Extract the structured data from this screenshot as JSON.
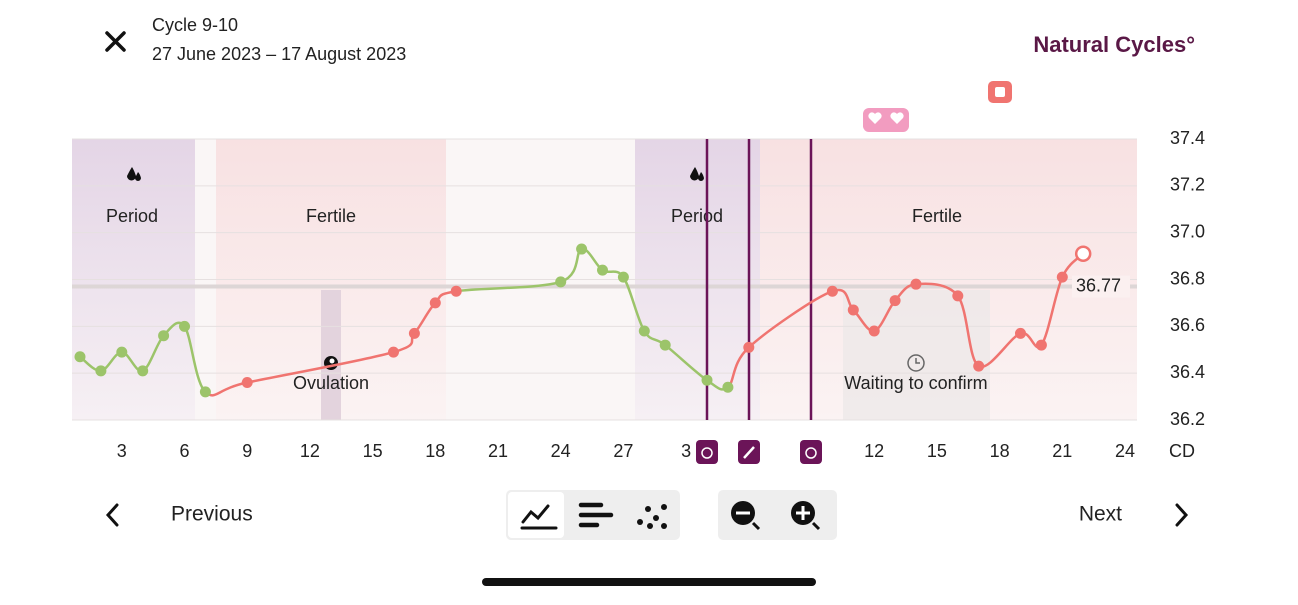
{
  "header": {
    "title": "Cycle 9-10",
    "subtitle": "27 June 2023 – 17 August 2023",
    "brand": "Natural Cycles°"
  },
  "chart_data": {
    "type": "line",
    "categories": [
      null,
      null,
      "3",
      null,
      null,
      "6",
      null,
      null,
      "9",
      null,
      null,
      "12",
      null,
      null,
      "15",
      null,
      null,
      "18",
      null,
      null,
      "21",
      null,
      null,
      "24",
      null,
      null,
      "27",
      null,
      null,
      "3",
      null,
      null,
      null,
      null,
      null,
      null,
      null,
      null,
      "12",
      null,
      null,
      "15",
      null,
      null,
      "18",
      null,
      null,
      "21",
      null,
      null,
      "24"
    ],
    "series": [
      {
        "color": "#9cc46a",
        "values": [
          36.47,
          36.41,
          36.49,
          36.41,
          36.56,
          36.6,
          36.32,
          null,
          null,
          null,
          null,
          null,
          null,
          null,
          null,
          null,
          null,
          null,
          null,
          null,
          null,
          null,
          null,
          36.79,
          36.93,
          36.84,
          36.81,
          36.58,
          36.52,
          null,
          36.37,
          36.34,
          null,
          null,
          null,
          null,
          null,
          null,
          null,
          null,
          null,
          null,
          null,
          null,
          null,
          null,
          null,
          null,
          null,
          null,
          null
        ]
      },
      {
        "color": "#f07470",
        "values": [
          null,
          null,
          null,
          null,
          null,
          null,
          null,
          null,
          36.36,
          null,
          null,
          null,
          null,
          null,
          null,
          36.49,
          36.57,
          36.7,
          36.75,
          null,
          null,
          null,
          null,
          null,
          null,
          null,
          null,
          null,
          null,
          null,
          null,
          null,
          36.51,
          null,
          null,
          null,
          36.75,
          36.67,
          36.58,
          36.71,
          36.78,
          null,
          36.73,
          36.43,
          null,
          36.57,
          36.52,
          36.81,
          36.91,
          null,
          null
        ]
      }
    ],
    "ylim": [
      36.2,
      37.4
    ],
    "yticks": [
      37.4,
      37.2,
      {
        "value": 37,
        "label": "37.0"
      },
      36.8,
      36.6,
      36.4,
      36.2
    ],
    "grid": true,
    "x_label": "CD",
    "coverline": 36.77,
    "annotations": [
      "Period",
      "Fertile",
      "Period",
      "Fertile",
      "Ovulation",
      "Waiting to confirm"
    ]
  },
  "nav": {
    "previous": "Previous",
    "next": "Next"
  }
}
